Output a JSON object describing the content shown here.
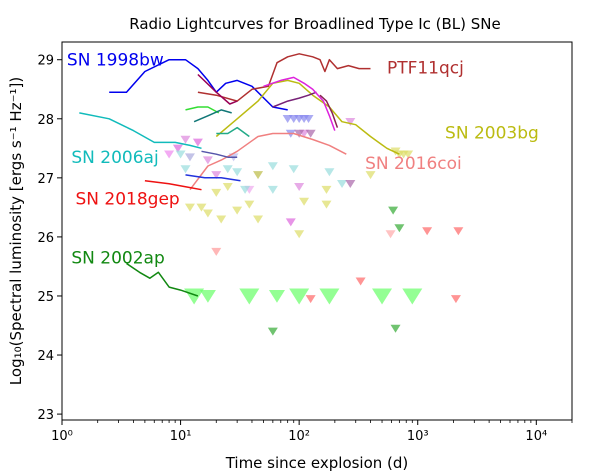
{
  "chart_data": {
    "type": "line",
    "title": "Radio Lightcurves for Broadlined Type Ic (BL) SNe",
    "xlabel": "Time since explosion (d)",
    "ylabel": "Log₁₀(Spectral luminosity [ergs s⁻¹ Hz⁻¹])",
    "xscale": "log",
    "xlim": [
      1,
      20000
    ],
    "ylim": [
      22.9,
      29.3
    ],
    "x_tick_labels": [
      "10⁰",
      "10¹",
      "10²",
      "10³",
      "10⁴"
    ],
    "x_tick_values": [
      1,
      10,
      100,
      1000,
      10000
    ],
    "y_ticks": [
      23,
      24,
      25,
      26,
      27,
      28,
      29
    ],
    "grid": false,
    "legend": "none",
    "series": [
      {
        "name": "SN 1998bw",
        "color": "#0000ee",
        "label_x": 1.1,
        "label_y": 29.0,
        "x": [
          2.5,
          3.5,
          5,
          8,
          11,
          14,
          17,
          20,
          24,
          30,
          40,
          60,
          80
        ],
        "y": [
          28.45,
          28.45,
          28.8,
          29.0,
          29.0,
          28.85,
          28.65,
          28.45,
          28.6,
          28.65,
          28.55,
          28.2,
          28.15
        ]
      },
      {
        "name": "PTF11qcj",
        "color": "#b03030",
        "label_x": 550,
        "label_y": 28.87,
        "x": [
          14,
          20,
          30,
          40,
          55,
          65,
          80,
          100,
          130,
          150,
          165,
          180,
          210,
          260,
          320,
          400
        ],
        "y": [
          28.45,
          28.4,
          28.3,
          28.5,
          28.55,
          28.95,
          29.05,
          29.1,
          29.05,
          29.0,
          28.8,
          29.0,
          28.85,
          28.9,
          28.85,
          28.85
        ]
      },
      {
        "name": "SN 2003bg",
        "color": "#bbbb11",
        "label_x": 1700,
        "label_y": 27.77,
        "x": [
          20,
          30,
          45,
          60,
          80,
          100,
          130,
          180,
          230,
          300,
          400,
          550,
          700
        ],
        "y": [
          27.7,
          28.0,
          28.3,
          28.6,
          28.65,
          28.6,
          28.4,
          28.2,
          27.95,
          27.9,
          27.7,
          27.5,
          27.4
        ]
      },
      {
        "name": "SN 2006aj",
        "color": "#11bbbb",
        "label_x": 1.2,
        "label_y": 27.35,
        "x": [
          1.4,
          2.5,
          4,
          6,
          9,
          12,
          15
        ],
        "y": [
          28.1,
          28.0,
          27.8,
          27.6,
          27.6,
          27.55,
          27.5
        ]
      },
      {
        "name": "SN 2016coi",
        "color": "#f08080",
        "label_x": 360,
        "label_y": 27.25,
        "x": [
          12,
          17,
          22,
          30,
          45,
          60,
          90,
          130,
          180,
          250
        ],
        "y": [
          26.8,
          27.2,
          27.3,
          27.45,
          27.7,
          27.75,
          27.75,
          27.65,
          27.55,
          27.4
        ]
      },
      {
        "name": "SN 2018gep",
        "color": "#ee1111",
        "label_x": 1.3,
        "label_y": 26.65,
        "x": [
          5,
          8,
          11,
          15
        ],
        "y": [
          26.95,
          26.9,
          26.85,
          26.8
        ]
      },
      {
        "name": "SN 2002ap",
        "color": "#118811",
        "label_x": 1.2,
        "label_y": 25.65,
        "x": [
          3.5,
          4.5,
          5.5,
          6.5,
          8,
          10,
          14
        ],
        "y": [
          25.55,
          25.4,
          25.3,
          25.4,
          25.15,
          25.1,
          25.0
        ]
      },
      {
        "name": "",
        "color": "#33dd33",
        "x": [
          11,
          14,
          17,
          21
        ],
        "y": [
          28.15,
          28.2,
          28.2,
          28.1
        ]
      },
      {
        "name": "",
        "color": "#117777",
        "x": [
          13,
          17,
          22,
          27
        ],
        "y": [
          27.95,
          28.05,
          28.15,
          28.1
        ]
      },
      {
        "name": "",
        "color": "#990055",
        "x": [
          14,
          20,
          26,
          30
        ],
        "y": [
          28.75,
          28.45,
          28.25,
          28.3
        ]
      },
      {
        "name": "",
        "color": "#772277",
        "x": [
          60,
          80,
          100,
          120,
          140
        ],
        "y": [
          28.2,
          28.3,
          28.35,
          28.4,
          28.45
        ]
      },
      {
        "name": "",
        "color": "#dd22dd",
        "x": [
          50,
          70,
          90,
          110,
          130,
          160,
          180,
          200
        ],
        "y": [
          28.55,
          28.65,
          28.7,
          28.6,
          28.5,
          28.3,
          28.05,
          27.8
        ]
      },
      {
        "name": "",
        "color": "#8a2252",
        "x": [
          150,
          170,
          190,
          210
        ],
        "y": [
          28.4,
          28.3,
          28.1,
          27.85
        ]
      },
      {
        "name": "",
        "color": "#22aa88",
        "x": [
          20,
          25,
          30,
          38
        ],
        "y": [
          27.75,
          27.75,
          27.85,
          27.7
        ]
      },
      {
        "name": "",
        "color": "#5555aa",
        "x": [
          15,
          20,
          25,
          30
        ],
        "y": [
          27.45,
          27.4,
          27.35,
          27.35
        ]
      },
      {
        "name": "",
        "color": "#2233dd",
        "x": [
          11,
          16,
          22,
          32
        ],
        "y": [
          27.05,
          27.0,
          27.0,
          26.95
        ]
      }
    ],
    "upper_limits": [
      {
        "x": 13,
        "y": 25.0,
        "color": "#66ff66",
        "size": 10
      },
      {
        "x": 38,
        "y": 25.0,
        "color": "#66ff66",
        "size": 10
      },
      {
        "x": 100,
        "y": 25.0,
        "color": "#66ff66",
        "size": 10
      },
      {
        "x": 180,
        "y": 25.0,
        "color": "#66ff66",
        "size": 10
      },
      {
        "x": 500,
        "y": 25.0,
        "color": "#66ff66",
        "size": 10
      },
      {
        "x": 900,
        "y": 25.0,
        "color": "#66ff66",
        "size": 10
      },
      {
        "x": 65,
        "y": 25.0,
        "color": "#66ff66",
        "size": 8
      },
      {
        "x": 17,
        "y": 25.0,
        "color": "#66ff66",
        "size": 8
      },
      {
        "x": 125,
        "y": 24.95,
        "color": "#ff6666",
        "size": 5
      },
      {
        "x": 2100,
        "y": 24.95,
        "color": "#ff6666",
        "size": 5
      },
      {
        "x": 330,
        "y": 25.25,
        "color": "#ff6666",
        "size": 5
      },
      {
        "x": 1200,
        "y": 26.1,
        "color": "#ff6666",
        "size": 5
      },
      {
        "x": 2200,
        "y": 26.1,
        "color": "#ff6666",
        "size": 5
      },
      {
        "x": 60,
        "y": 24.4,
        "color": "#33aa33",
        "size": 5
      },
      {
        "x": 650,
        "y": 24.45,
        "color": "#33aa33",
        "size": 5
      },
      {
        "x": 620,
        "y": 26.45,
        "color": "#33aa33",
        "size": 5
      },
      {
        "x": 700,
        "y": 26.15,
        "color": "#33aa33",
        "size": 5
      },
      {
        "x": 20,
        "y": 25.75,
        "color": "#ff9999",
        "size": 5
      },
      {
        "x": 590,
        "y": 26.05,
        "color": "#ffaaaa",
        "size": 5
      },
      {
        "x": 9.5,
        "y": 27.5,
        "color": "#dd66dd",
        "size": 5
      },
      {
        "x": 8,
        "y": 27.4,
        "color": "#ee88ee",
        "size": 5
      },
      {
        "x": 11,
        "y": 27.65,
        "color": "#dd88dd",
        "size": 5
      },
      {
        "x": 12,
        "y": 27.35,
        "color": "#aaaadd",
        "size": 5
      },
      {
        "x": 14,
        "y": 27.6,
        "color": "#dd66dd",
        "size": 5
      },
      {
        "x": 17,
        "y": 27.3,
        "color": "#dd88dd",
        "size": 5
      },
      {
        "x": 10,
        "y": 27.4,
        "color": "#99dddd",
        "size": 5
      },
      {
        "x": 11,
        "y": 27.15,
        "color": "#99dddd",
        "size": 5
      },
      {
        "x": 25,
        "y": 27.15,
        "color": "#99dddd",
        "size": 5
      },
      {
        "x": 30,
        "y": 27.1,
        "color": "#99dddd",
        "size": 5
      },
      {
        "x": 28,
        "y": 27.35,
        "color": "#bbbbee",
        "size": 5
      },
      {
        "x": 20,
        "y": 27.05,
        "color": "#dd88dd",
        "size": 5
      },
      {
        "x": 38,
        "y": 26.8,
        "color": "#eeaaee",
        "size": 5
      },
      {
        "x": 20,
        "y": 26.75,
        "color": "#dddd66",
        "size": 5
      },
      {
        "x": 25,
        "y": 26.85,
        "color": "#dddd66",
        "size": 5
      },
      {
        "x": 35,
        "y": 26.8,
        "color": "#99dddd",
        "size": 5
      },
      {
        "x": 12,
        "y": 26.5,
        "color": "#dddd66",
        "size": 5
      },
      {
        "x": 15,
        "y": 26.5,
        "color": "#dddd66",
        "size": 5
      },
      {
        "x": 17,
        "y": 26.4,
        "color": "#dddd66",
        "size": 5
      },
      {
        "x": 22,
        "y": 26.3,
        "color": "#dddd66",
        "size": 5
      },
      {
        "x": 30,
        "y": 26.45,
        "color": "#dddd66",
        "size": 5
      },
      {
        "x": 38,
        "y": 26.55,
        "color": "#dddd66",
        "size": 5
      },
      {
        "x": 45,
        "y": 26.3,
        "color": "#dddd66",
        "size": 5
      },
      {
        "x": 60,
        "y": 26.8,
        "color": "#99dddd",
        "size": 5
      },
      {
        "x": 100,
        "y": 26.85,
        "color": "#dd88dd",
        "size": 5
      },
      {
        "x": 110,
        "y": 26.6,
        "color": "#dddd66",
        "size": 5
      },
      {
        "x": 170,
        "y": 26.55,
        "color": "#dddd66",
        "size": 5
      },
      {
        "x": 230,
        "y": 26.9,
        "color": "#99dddd",
        "size": 5
      },
      {
        "x": 180,
        "y": 27.1,
        "color": "#99dddd",
        "size": 5
      },
      {
        "x": 170,
        "y": 26.8,
        "color": "#dddd66",
        "size": 5
      },
      {
        "x": 270,
        "y": 26.9,
        "color": "#aa66aa",
        "size": 5
      },
      {
        "x": 90,
        "y": 27.15,
        "color": "#99dddd",
        "size": 5
      },
      {
        "x": 60,
        "y": 27.2,
        "color": "#99dddd",
        "size": 5
      },
      {
        "x": 45,
        "y": 27.05,
        "color": "#bbbb44",
        "size": 5
      },
      {
        "x": 85,
        "y": 26.25,
        "color": "#dd66dd",
        "size": 5
      },
      {
        "x": 100,
        "y": 26.05,
        "color": "#dddd66",
        "size": 5
      },
      {
        "x": 400,
        "y": 27.05,
        "color": "#dddd66",
        "size": 5
      },
      {
        "x": 270,
        "y": 27.95,
        "color": "#dd88dd",
        "size": 5
      },
      {
        "x": 110,
        "y": 27.75,
        "color": "#dd88dd",
        "size": 5
      },
      {
        "x": 80,
        "y": 28.0,
        "color": "#8888ee",
        "size": 5
      },
      {
        "x": 90,
        "y": 28.0,
        "color": "#8888ee",
        "size": 5
      },
      {
        "x": 100,
        "y": 28.0,
        "color": "#8888ee",
        "size": 5
      },
      {
        "x": 110,
        "y": 28.0,
        "color": "#8888ee",
        "size": 5
      },
      {
        "x": 120,
        "y": 28.0,
        "color": "#8888ee",
        "size": 5
      },
      {
        "x": 85,
        "y": 27.75,
        "color": "#8888ee",
        "size": 5
      },
      {
        "x": 100,
        "y": 27.75,
        "color": "#aa66aa",
        "size": 5
      },
      {
        "x": 125,
        "y": 27.75,
        "color": "#aa66aa",
        "size": 5
      },
      {
        "x": 650,
        "y": 27.45,
        "color": "#dddd66",
        "size": 5
      },
      {
        "x": 700,
        "y": 27.4,
        "color": "#dddd66",
        "size": 5
      },
      {
        "x": 760,
        "y": 27.4,
        "color": "#dddd66",
        "size": 5
      },
      {
        "x": 830,
        "y": 27.4,
        "color": "#dddd66",
        "size": 5
      }
    ]
  }
}
